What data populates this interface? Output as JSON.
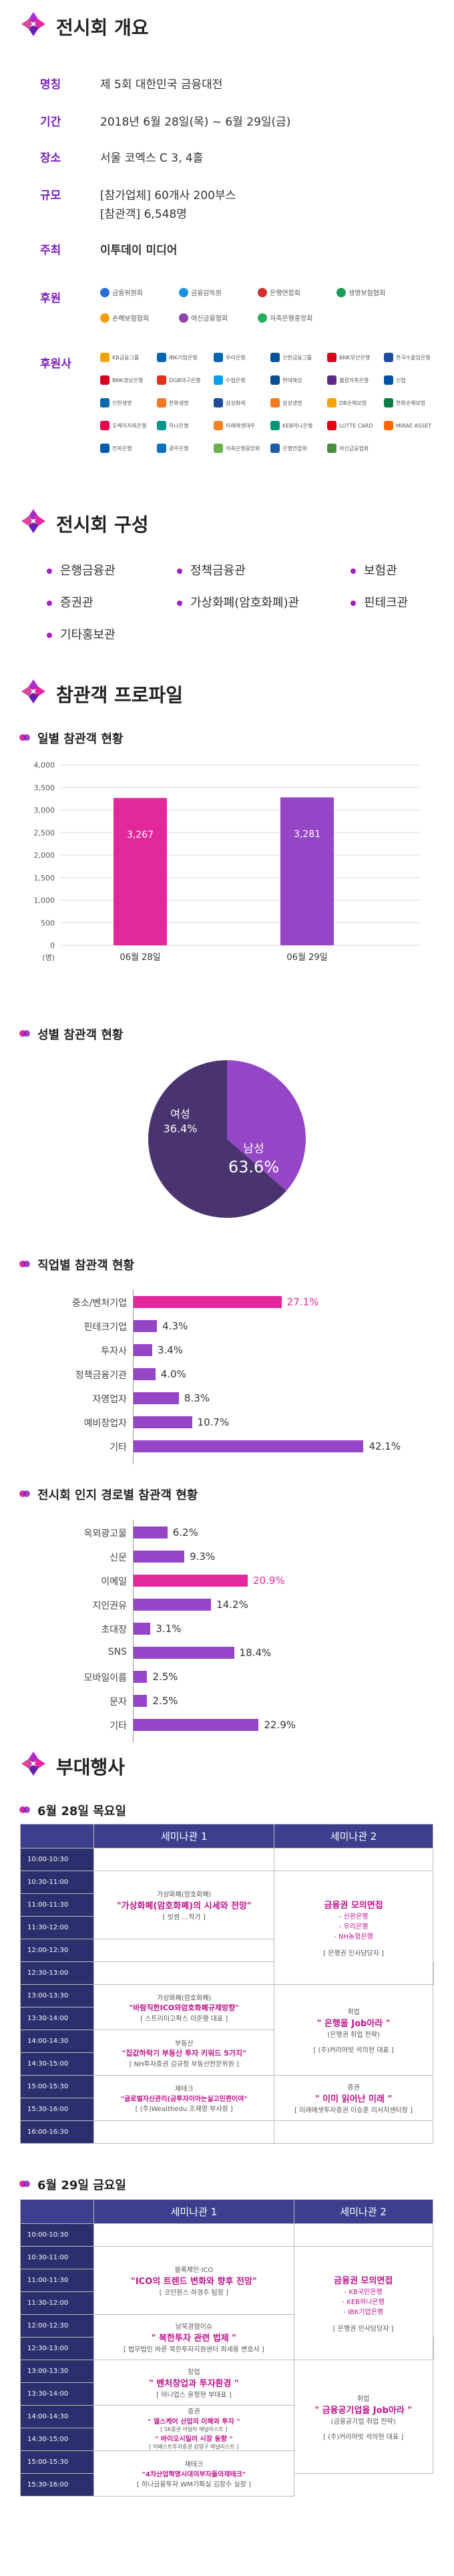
{
  "overview": {
    "title": "전시회 개요",
    "rows": [
      {
        "label": "명칭",
        "value": "제 5회 대한민국 금융대전"
      },
      {
        "label": "기간",
        "value": "2018년 6월 28일(목) ~ 6월 29일(금)"
      },
      {
        "label": "장소",
        "value": "서울 코엑스 C 3, 4홀"
      },
      {
        "label": "규모",
        "value": "[참가업체] 60개사 200부스"
      },
      {
        "label": "",
        "value": "[참관객] 6,548명"
      },
      {
        "label": "주최",
        "value": "이투데이 미디어"
      },
      {
        "label": "후원",
        "value": ""
      },
      {
        "label": "후원사",
        "value": ""
      }
    ],
    "sponsors": [
      "금융위원회",
      "금융감독원",
      "은행연합회",
      "생명보험협회",
      "손해보험협회",
      "여신금융협회",
      "저축은행중앙회"
    ],
    "co_sponsors": [
      "KB금융그룹",
      "IBK기업은행",
      "우리은행",
      "신한금융그룹",
      "BNK부산은행",
      "한국수출입은행",
      "BNK경남은행",
      "DGB대구은행",
      "수협은행",
      "현대해상",
      "웰컴저축은행",
      "신협",
      "신한생명",
      "한화생명",
      "삼성화재",
      "삼성생명",
      "DB손해보험",
      "한화손해보험",
      "오케이저축은행",
      "하나은행",
      "미래에셋대우",
      "KEB하나은행",
      "LOTTE CARD",
      "MIRAE ASSET",
      "전북은행",
      "광주은행",
      "저축은행중앙회",
      "은행연합회",
      "여신금융협회"
    ]
  },
  "composition": {
    "title": "전시회 구성",
    "items": [
      "은행금융관",
      "정책금융관",
      "보험관",
      "증권관",
      "가상화폐(암호화폐)관",
      "핀테크관",
      "기타홍보관"
    ]
  },
  "profile": {
    "title": "참관객 프로파일",
    "daily_title": "일별 참관객 현황",
    "gender_title": "성별 참관객 현황",
    "job_title": "직업별 참관객 현황",
    "route_title": "전시회 인지 경로별 참관객 현황",
    "daily_unit": "(명)",
    "daily_ticks": [
      "4,000",
      "3,500",
      "3,000",
      "2,500",
      "2,000",
      "1,500",
      "1,000",
      "500",
      "0"
    ],
    "gender_female_label": "여성",
    "gender_female_value": "36.4%",
    "gender_male_label": "남성",
    "gender_male_value": "63.6%"
  },
  "chart_data": [
    {
      "type": "bar",
      "title": "일별 참관객 현황",
      "categories": [
        "06월 28일",
        "06월 29일"
      ],
      "values": [
        3267,
        3281
      ],
      "value_labels": [
        "3,267",
        "3,281"
      ],
      "ylim": [
        0,
        4000
      ],
      "ylabel": "(명)",
      "colors": [
        "#e2289a",
        "#9446c7"
      ]
    },
    {
      "type": "pie",
      "title": "성별 참관객 현황",
      "categories": [
        "여성",
        "남성"
      ],
      "values": [
        36.4,
        63.6
      ],
      "colors": [
        "#9446c7",
        "#4a3470"
      ]
    },
    {
      "type": "bar",
      "title": "직업별 참관객 현황",
      "orientation": "horizontal",
      "categories": [
        "중소/벤처기업",
        "핀테크기업",
        "투자사",
        "정책금융기관",
        "자영업자",
        "예비창업자",
        "기타"
      ],
      "values": [
        27.1,
        4.3,
        3.4,
        4.0,
        8.3,
        10.7,
        42.1
      ],
      "value_labels": [
        "27.1%",
        "4.3%",
        "3.4%",
        "4.0%",
        "8.3%",
        "10.7%",
        "42.1%"
      ]
    },
    {
      "type": "bar",
      "title": "전시회 인지 경로별 참관객 현황",
      "orientation": "horizontal",
      "categories": [
        "옥외광고물",
        "신문",
        "이메일",
        "지인권유",
        "초대장",
        "SNS",
        "모바일이름",
        "문자",
        "기타"
      ],
      "values": [
        6.2,
        9.3,
        20.9,
        14.2,
        3.1,
        18.4,
        2.5,
        2.5,
        22.9
      ],
      "value_labels": [
        "6.2%",
        "9.3%",
        "20.9%",
        "14.2%",
        "3.1%",
        "18.4%",
        "2.5%",
        "2.5%",
        "22.9%"
      ]
    }
  ],
  "events": {
    "title": "부대행사",
    "day1_title": "6월 28일 목요일",
    "day2_title": "6월 29일 금요일",
    "col1": "세미나관 1",
    "col2": "세미나관 2",
    "day1_times": [
      "10:00-10:30",
      "10:30-11:00",
      "11:00-11:30",
      "11:30-12:00",
      "12:00-12:30",
      "12:30-13:00",
      "13:00-13:30",
      "13:30-14:00",
      "14:00-14:30",
      "14:30-15:00",
      "15:00-15:30",
      "15:30-16:00",
      "16:00-16:30"
    ],
    "day2_times": [
      "10:00-10:30",
      "10:30-11:00",
      "11:00-11:30",
      "11:30-12:00",
      "12:00-12:30",
      "12:30-13:00",
      "13:00-13:30",
      "13:30-14:00",
      "14:00-14:30",
      "14:30-15:00",
      "15:00-15:30",
      "15:30-16:00"
    ],
    "d1_s1_a_cat": "가상화폐(암호화폐)",
    "d1_s1_a_title": "\"가상화폐(암호화폐)의 시세와 전망\"",
    "d1_s1_a_speaker": "[ 빗썸 …작가 ]",
    "d1_s1_b_cat": "가상화폐(암호화폐)",
    "d1_s1_b_title": "\"바람직한ICO와암호화폐규제방향\"",
    "d1_s1_b_speaker": "[ 스트리미고팍스 이준행 대표 ]",
    "d1_s1_c_cat": "부동산",
    "d1_s1_c_title": "\"집값하락기 부동산 투자 키워드 5가지\"",
    "d1_s1_c_speaker": "[ NH투자증권 김규정 부동산전문위원 ]",
    "d1_s1_d_cat": "재테크",
    "d1_s1_d_title": "\"글로벌자산관리(금투자이아는실고민편이여\"",
    "d1_s1_d_speaker": "[ (주)Wealthedu 조재영 부사장 ]",
    "d1_s2_a_title": "금융권 모의면접",
    "d1_s2_a_items": [
      "- 신한은행",
      "- 우리은행",
      "- NH농협은행"
    ],
    "d1_s2_a_foot": "[ 은행권 인사담당자 ]",
    "d1_s2_b_cat": "취업",
    "d1_s2_b_title": "\" 은행을 Job아라 \"",
    "d1_s2_b_sub": "(은행권 취업 전략)",
    "d1_s2_b_speaker": "[ (주)커리어빗 석의현 대표 ]",
    "d1_s2_c_cat": "증권",
    "d1_s2_c_title": "\" 이미 읽어난 미래 \"",
    "d1_s2_c_speaker": "[ 미래에셋투자증권 이승훈 리서치센터장 ]",
    "d2_s1_a_cat": "블록체인·ICO",
    "d2_s1_a_title": "\"ICO의 트렌드 변화와 향후 전망\"",
    "d2_s1_a_speaker": "[ 코인원스 하경주 팀장 ]",
    "d2_s1_b_cat": "남북경협이슈",
    "d2_s1_b_title": "\" 북한투자 관련 법제 \"",
    "d2_s1_b_speaker": "[ 법무법인 바른 북한투자지원센터 최세용 변호사 ]",
    "d2_s1_c_cat": "창업",
    "d2_s1_c_title": "\" 벤처창업과 투자환경 \"",
    "d2_s1_c_speaker": "[ 머니업스 윤정현 부대표 ]",
    "d2_s1_d_cat": "증권",
    "d2_s1_d_title": "\" 엘스케어 산업의 이해와 투자 \"",
    "d2_s1_d_speaker": "[ SK증권 이달미 애널리스트 ]",
    "d2_s1_d2_title": "\" 바이오시밀러 시장 동향 \"",
    "d2_s1_d2_speaker": "[ 이베스트투자증권 강양구 애널리스트 ]",
    "d2_s1_e_cat": "재테크",
    "d2_s1_e_title": "\"4차산업혁명시대의부자들의재테크\"",
    "d2_s1_e_speaker": "[ 하나금융투자 WM기획실 김창수 실장 ]",
    "d2_s2_a_title": "금융권 모의면접",
    "d2_s2_a_items": [
      "- KB국민은행",
      "- KEB하나은행",
      "- IBK기업은행"
    ],
    "d2_s2_a_foot": "[ 은행권 인사담당자 ]",
    "d2_s2_b_cat": "취업",
    "d2_s2_b_title": "\" 금융공기업을 Job아라 \"",
    "d2_s2_b_sub": "(금융공기업 취업 전략)",
    "d2_s2_b_speaker": "[ (주)커리어빗 석의현 대표 ]",
    "side_label": "증권"
  },
  "colors": {
    "purple": "#7a1fbd",
    "pink": "#e2289a",
    "violet": "#9446c7",
    "navy": "#2b2f6e"
  }
}
